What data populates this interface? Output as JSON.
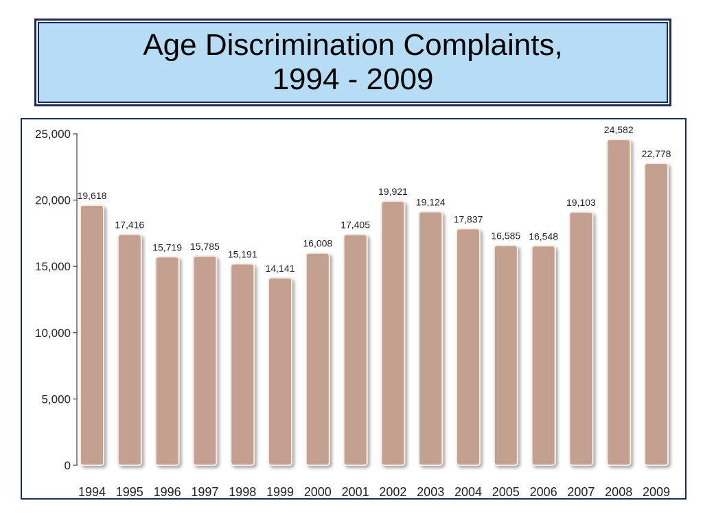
{
  "title": {
    "line1": "Age Discrimination Complaints,",
    "line2": "1994 - 2009"
  },
  "colors": {
    "title_bg": "#b7dcf5",
    "border": "#1d2b5a",
    "bar": "#c4a090",
    "bar_edge": "#f4ece6"
  },
  "chart_data": {
    "type": "bar",
    "title": "Age Discrimination Complaints, 1994 - 2009",
    "xlabel": "",
    "ylabel": "",
    "ylim": [
      0,
      25000
    ],
    "yticks": [
      0,
      5000,
      10000,
      15000,
      20000,
      25000
    ],
    "ytick_labels": [
      "0",
      "5,000",
      "10,000",
      "15,000",
      "20,000",
      "25,000"
    ],
    "grid": false,
    "categories": [
      "1994",
      "1995",
      "1996",
      "1997",
      "1998",
      "1999",
      "2000",
      "2001",
      "2002",
      "2003",
      "2004",
      "2005",
      "2006",
      "2007",
      "2008",
      "2009"
    ],
    "values": [
      19618,
      17416,
      15719,
      15785,
      15191,
      14141,
      16008,
      17405,
      19921,
      19124,
      17837,
      16585,
      16548,
      19103,
      24582,
      22778
    ],
    "value_labels": [
      "19,618",
      "17,416",
      "15,719",
      "15,785",
      "15,191",
      "14,141",
      "16,008",
      "17,405",
      "19,921",
      "19,124",
      "17,837",
      "16,585",
      "16,548",
      "19,103",
      "24,582",
      "22,778"
    ]
  }
}
